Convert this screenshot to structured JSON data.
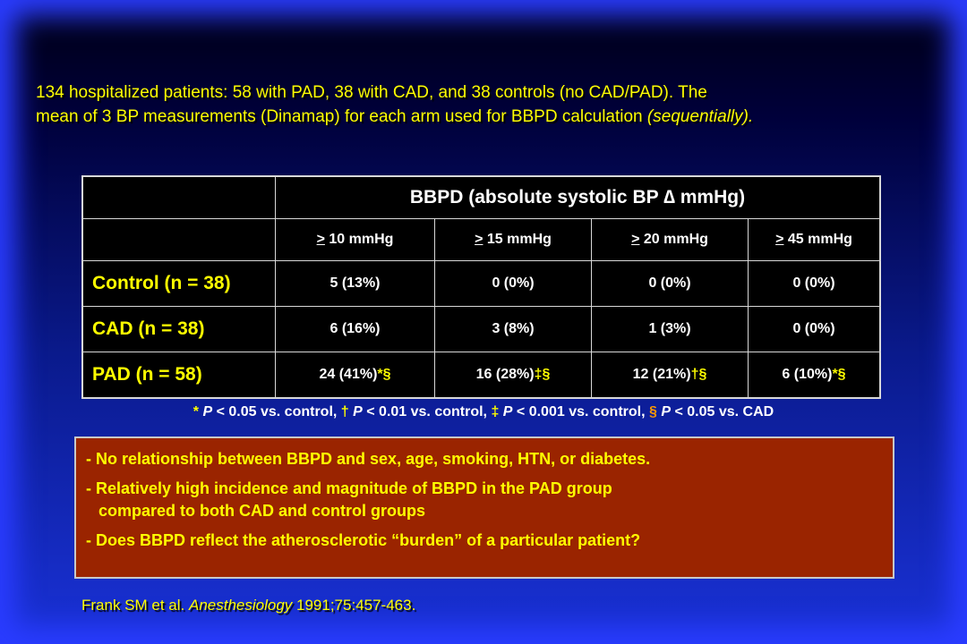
{
  "intro": {
    "line1": "134 hospitalized patients: 58 with PAD, 38 with CAD, and 38 controls (no CAD/PAD). The",
    "line2_a": "mean of 3 BP measurements (Dinamap) for each arm used for BBPD calculation ",
    "line2_b": "(sequentially)."
  },
  "table": {
    "title": "BBPD (absolute systolic BP ∆ mmHg)",
    "columns": [
      {
        "ge": ">",
        "rest": " 10 mmHg"
      },
      {
        "ge": ">",
        "rest": " 15 mmHg"
      },
      {
        "ge": ">",
        "rest": " 20 mmHg"
      },
      {
        "ge": ">",
        "rest": " 45 mmHg"
      }
    ],
    "rows": [
      {
        "label": "Control (n = 38)",
        "cells": [
          {
            "v": "5 (13%)",
            "m": ""
          },
          {
            "v": "0 (0%)",
            "m": ""
          },
          {
            "v": "0 (0%)",
            "m": ""
          },
          {
            "v": "0 (0%)",
            "m": ""
          }
        ]
      },
      {
        "label": "CAD (n = 38)",
        "cells": [
          {
            "v": "6 (16%)",
            "m": ""
          },
          {
            "v": "3 (8%)",
            "m": ""
          },
          {
            "v": "1 (3%)",
            "m": ""
          },
          {
            "v": "0 (0%)",
            "m": ""
          }
        ]
      },
      {
        "label": "PAD (n = 58)",
        "cells": [
          {
            "v": "24 (41%)",
            "m": "*§"
          },
          {
            "v": "16 (28%)",
            "m": "‡§"
          },
          {
            "v": "12 (21%)",
            "m": "†§"
          },
          {
            "v": "6 (10%)",
            "m": "*§"
          }
        ]
      }
    ]
  },
  "footnote": {
    "s1": "*",
    "p1": " P",
    "t1": " < 0.05 vs. control, ",
    "s2": "†",
    "p2": " P",
    "t2": " < 0.01 vs. control, ",
    "s3": "‡",
    "p3": " P",
    "t3": " < 0.001 vs. control, ",
    "s4": "§",
    "p4": " P",
    "t4": " < 0.05 vs. CAD"
  },
  "findings": {
    "item1": "- No relationship between BBPD and sex, age, smoking, HTN, or diabetes.",
    "item2_a": "- Relatively high incidence and magnitude of BBPD in the PAD group",
    "item2_b": "compared to both CAD and control groups",
    "item3": "- Does BBPD reflect the atherosclerotic “burden” of a particular patient?"
  },
  "citation": {
    "authors": "Frank SM et al. ",
    "journal": "Anesthesiology",
    "ref": " 1991;75:457-463."
  }
}
